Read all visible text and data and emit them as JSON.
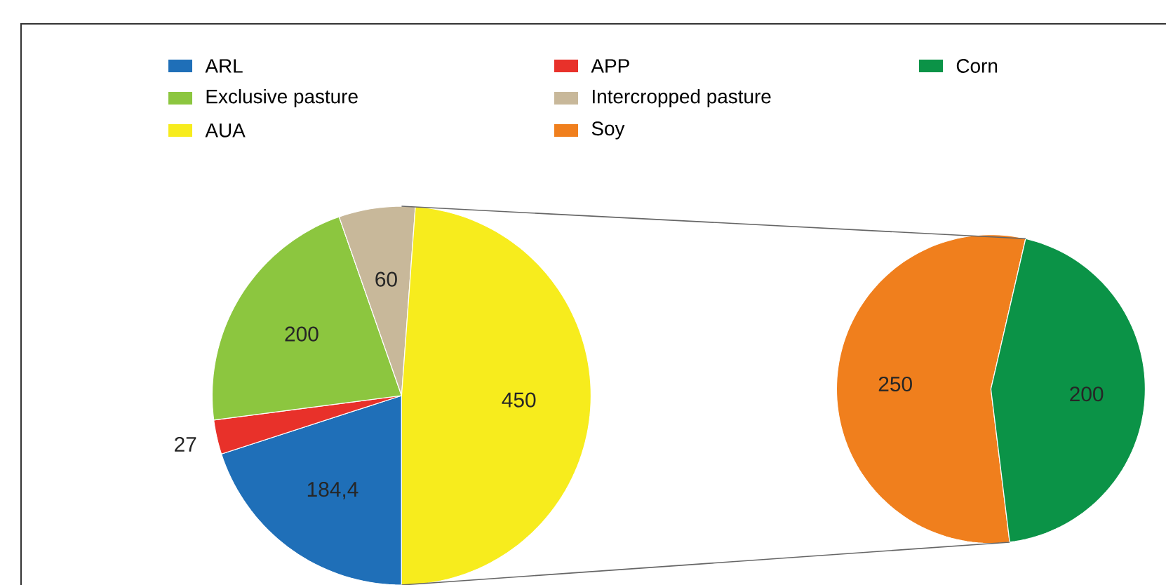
{
  "chart_data": [
    {
      "type": "pie",
      "categories": [
        "ARL",
        "APP",
        "Exclusive pasture",
        "Intercropped pasture",
        "AUA"
      ],
      "values": [
        184.4,
        27,
        200,
        60,
        450
      ],
      "colors": [
        "#1f6fb8",
        "#e8312a",
        "#8cc63f",
        "#c8b89a",
        "#f7ec1d"
      ],
      "value_labels": [
        "184,4",
        "27",
        "200",
        "60",
        "450"
      ],
      "legend": "top"
    },
    {
      "type": "pie",
      "categories": [
        "Soy",
        "Corn"
      ],
      "values": [
        250,
        200
      ],
      "colors": [
        "#f07f1d",
        "#0b9347"
      ],
      "value_labels": [
        "250",
        "200"
      ],
      "legend": "top"
    }
  ]
}
